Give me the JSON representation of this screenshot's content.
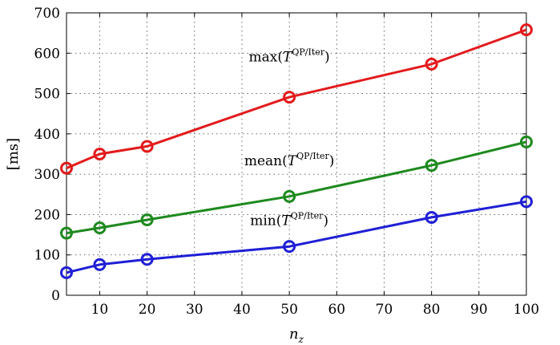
{
  "chart_data": {
    "type": "line",
    "x": [
      3,
      10,
      20,
      50,
      80,
      100
    ],
    "series": [
      {
        "name": "max(T^{QP/Iter})",
        "color": "#e31a1c",
        "values": [
          315,
          350,
          369,
          491,
          573,
          658
        ]
      },
      {
        "name": "mean(T^{QP/Iter})",
        "color": "#1e8a1e",
        "values": [
          154,
          167,
          187,
          245,
          322,
          380
        ]
      },
      {
        "name": "min(T^{QP/Iter})",
        "color": "#1f1fd6",
        "values": [
          56,
          76,
          89,
          121,
          193,
          232
        ]
      }
    ],
    "annotations": [
      {
        "func": "max",
        "base": "(T",
        "sup": "QP/Iter",
        "close": ")",
        "x": 50,
        "y": 580
      },
      {
        "func": "mean",
        "base": "(T",
        "sup": "QP/Iter",
        "close": ")",
        "x": 50,
        "y": 322
      },
      {
        "func": "min",
        "base": "(T",
        "sup": "QP/Iter",
        "close": ")",
        "x": 50,
        "y": 174
      }
    ],
    "xlabel_base": "n",
    "xlabel_sub": "z",
    "ylabel": "[ms]",
    "xlim": [
      3,
      100
    ],
    "ylim": [
      0,
      700
    ],
    "xticks": [
      10,
      20,
      30,
      40,
      50,
      60,
      70,
      80,
      90,
      100
    ],
    "yticks": [
      0,
      100,
      200,
      300,
      400,
      500,
      600,
      700
    ],
    "grid": true,
    "marker": "circle-open"
  }
}
